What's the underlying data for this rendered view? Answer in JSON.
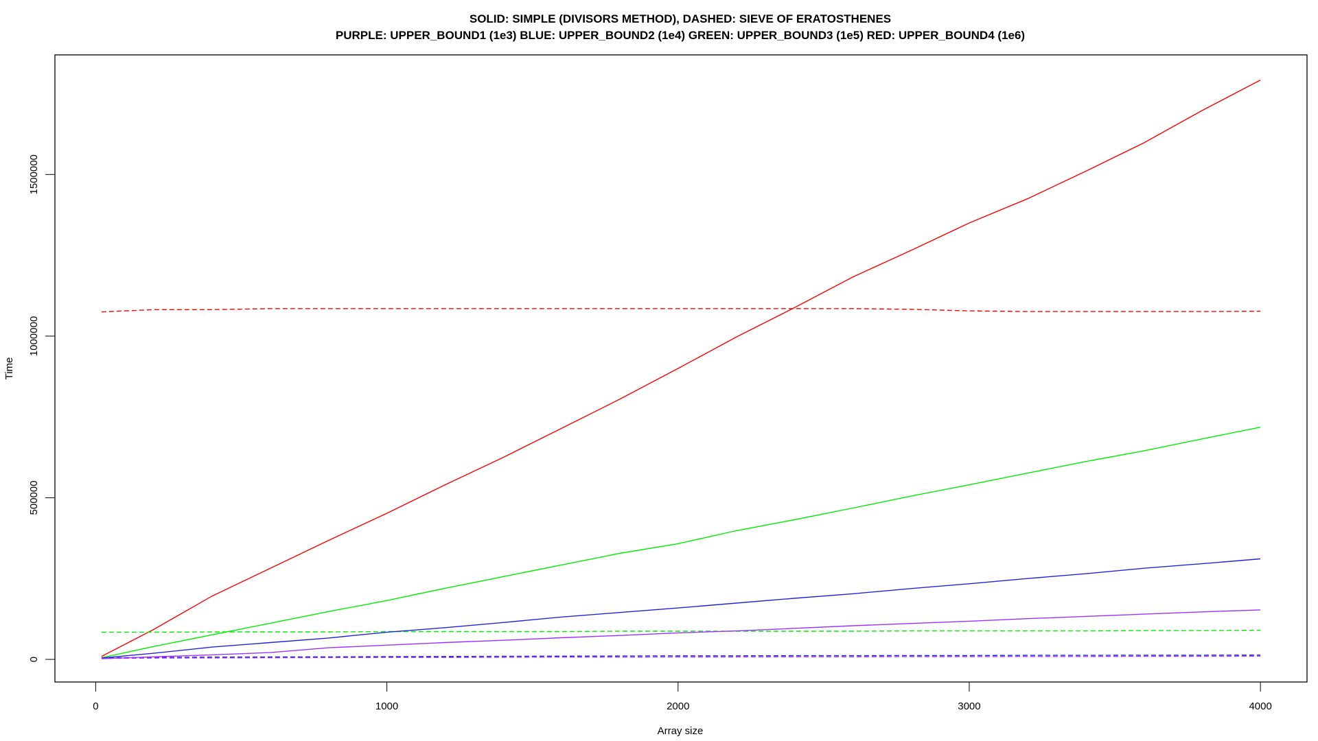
{
  "chart_data": {
    "type": "line",
    "title": "SOLID: SIMPLE (DIVISORS METHOD), DASHED: SIEVE OF ERATOSTHENES",
    "subtitle": "PURPLE: UPPER_BOUND1 (1e3) BLUE: UPPER_BOUND2 (1e4) GREEN: UPPER_BOUND3 (1e5) RED: UPPER_BOUND4 (1e6)",
    "xlabel": "Array size",
    "ylabel": "Time",
    "xlim": [
      -140,
      4160
    ],
    "ylim": [
      -70000,
      1870000
    ],
    "xticks": [
      0,
      1000,
      2000,
      3000,
      4000
    ],
    "xtick_labels": [
      "0",
      "1000",
      "2000",
      "3000",
      "4000"
    ],
    "yticks": [
      0,
      500000,
      1000000,
      1500000
    ],
    "ytick_labels": [
      "0",
      "500000",
      "1000000",
      "1500000"
    ],
    "grid": false,
    "legend": "none",
    "x": [
      20,
      200,
      400,
      600,
      800,
      1000,
      1200,
      1400,
      1600,
      1800,
      2000,
      2200,
      2400,
      2600,
      2800,
      3000,
      3200,
      3400,
      3600,
      3800,
      4000
    ],
    "series": [
      {
        "color": "#ff0000",
        "dash": false,
        "values": [
          9000,
          93000,
          196000,
          282000,
          368000,
          452000,
          540000,
          625000,
          715000,
          805000,
          900000,
          997000,
          1088000,
          1183000,
          1265000,
          1350000,
          1425000,
          1510000,
          1598000,
          1698000,
          1792000
        ]
      },
      {
        "color": "#ff0000",
        "dash": true,
        "values": [
          1075000,
          1082000,
          1082000,
          1085000,
          1085000,
          1085000,
          1085000,
          1085000,
          1085000,
          1085000,
          1085000,
          1085000,
          1085000,
          1085000,
          1083000,
          1078000,
          1076000,
          1076000,
          1076000,
          1076000,
          1077000
        ]
      },
      {
        "color": "#00ee00",
        "dash": false,
        "values": [
          5000,
          40000,
          76000,
          112000,
          148000,
          182000,
          220000,
          256000,
          292000,
          328000,
          358000,
          398000,
          432000,
          468000,
          505000,
          540000,
          576000,
          612000,
          645000,
          682000,
          718000
        ]
      },
      {
        "color": "#00ee00",
        "dash": true,
        "values": [
          84000,
          84000,
          85000,
          85000,
          85000,
          86000,
          86000,
          86000,
          86000,
          87000,
          87000,
          87000,
          87000,
          87000,
          88000,
          88000,
          88000,
          88000,
          89000,
          89000,
          90000
        ]
      },
      {
        "color": "#2222dd",
        "dash": false,
        "values": [
          4000,
          19000,
          38000,
          52000,
          66000,
          84000,
          98000,
          114000,
          131000,
          145000,
          159000,
          174000,
          189000,
          203000,
          219000,
          234000,
          250000,
          265000,
          282000,
          296000,
          311000
        ]
      },
      {
        "color": "#2222dd",
        "dash": true,
        "values": [
          5000,
          6000,
          7000,
          7500,
          8000,
          8500,
          9000,
          9500,
          10000,
          10500,
          11000,
          11000,
          11500,
          11500,
          12000,
          12000,
          12500,
          12500,
          13000,
          13000,
          13500
        ]
      },
      {
        "color": "#9b30ff",
        "dash": false,
        "values": [
          2000,
          8000,
          14000,
          21000,
          36000,
          44000,
          52000,
          59000,
          67000,
          74000,
          82000,
          88000,
          96000,
          104000,
          111000,
          118000,
          126000,
          133000,
          140000,
          147000,
          153000
        ]
      },
      {
        "color": "#9b30ff",
        "dash": true,
        "values": [
          3000,
          4000,
          4500,
          5000,
          5500,
          6000,
          6000,
          6500,
          7000,
          7000,
          7500,
          7500,
          8000,
          8000,
          8500,
          8500,
          9000,
          9000,
          9500,
          9500,
          10000
        ]
      }
    ]
  }
}
